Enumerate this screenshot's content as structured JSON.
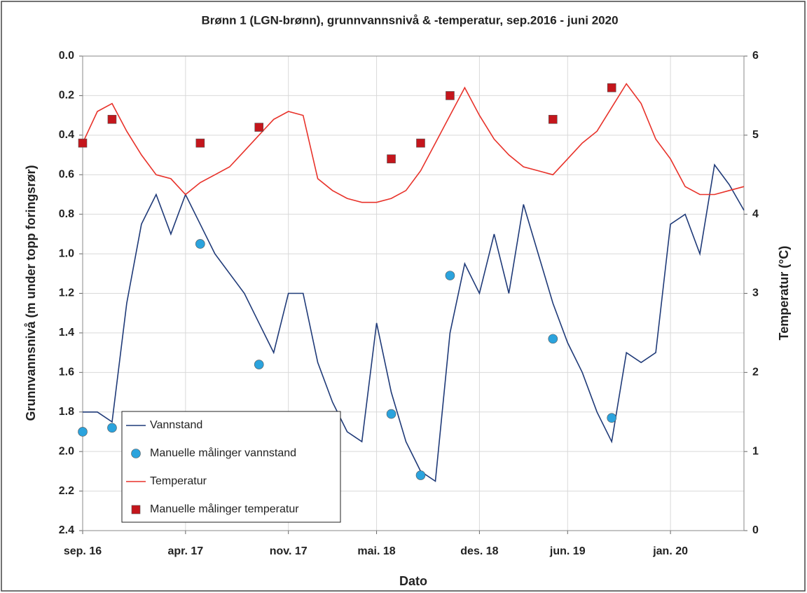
{
  "chart_data": {
    "type": "line",
    "title": "Brønn 1 (LGN-brønn), grunnvannsnivå & -temperatur, sep.2016 - juni 2020",
    "xlabel": "Dato",
    "ylabel": "Grunnvannsnivå (m under topp foringsrør)",
    "y2label": "Temperatur (°C)",
    "x": [
      "2016-09",
      "2016-10",
      "2016-11",
      "2016-12",
      "2017-01",
      "2017-02",
      "2017-03",
      "2017-04",
      "2017-05",
      "2017-06",
      "2017-07",
      "2017-08",
      "2017-09",
      "2017-10",
      "2017-11",
      "2017-12",
      "2018-01",
      "2018-02",
      "2018-03",
      "2018-04",
      "2018-05",
      "2018-06",
      "2018-07",
      "2018-08",
      "2018-09",
      "2018-10",
      "2018-11",
      "2018-12",
      "2019-01",
      "2019-02",
      "2019-03",
      "2019-04",
      "2019-05",
      "2019-06",
      "2019-07",
      "2019-08",
      "2019-09",
      "2019-10",
      "2019-11",
      "2019-12",
      "2020-01",
      "2020-02",
      "2020-03",
      "2020-04",
      "2020-05",
      "2020-06"
    ],
    "xlim": [
      "2016-09",
      "2020-06"
    ],
    "xticks": [
      {
        "value": "2016-09",
        "label": "sep. 16"
      },
      {
        "value": "2017-04",
        "label": "apr. 17"
      },
      {
        "value": "2017-11",
        "label": "nov. 17"
      },
      {
        "value": "2018-05",
        "label": "mai. 18"
      },
      {
        "value": "2018-12",
        "label": "des. 18"
      },
      {
        "value": "2019-06",
        "label": "jun. 19"
      },
      {
        "value": "2020-01",
        "label": "jan. 20"
      }
    ],
    "ylim": [
      0,
      2.4
    ],
    "yinverted": true,
    "yticks": [
      {
        "value": 0,
        "label": "0.0"
      },
      0.2,
      0.4,
      0.6,
      0.8,
      {
        "value": 1,
        "label": "1.0"
      },
      1.2,
      1.4,
      1.6,
      1.8,
      {
        "value": 2,
        "label": "2.0"
      },
      2.2,
      2.4
    ],
    "y2lim": [
      0,
      6
    ],
    "y2ticks": [
      0,
      1,
      2,
      3,
      4,
      5,
      6
    ],
    "grid": true,
    "legend": "lower left",
    "series": [
      {
        "name": "Vannstand",
        "color": "#1f3a78",
        "values": [
          1.8,
          1.8,
          1.85,
          1.25,
          0.85,
          0.7,
          0.9,
          0.7,
          0.85,
          1.0,
          1.1,
          1.2,
          1.35,
          1.5,
          1.2,
          1.2,
          1.55,
          1.75,
          1.9,
          1.95,
          1.35,
          1.7,
          1.95,
          2.1,
          2.15,
          1.4,
          1.05,
          1.2,
          0.9,
          1.2,
          0.75,
          1.0,
          1.25,
          1.45,
          1.6,
          1.8,
          1.95,
          1.5,
          1.55,
          1.5,
          0.85,
          0.8,
          1.0,
          0.55,
          0.65,
          0.78
        ]
      },
      {
        "name": "Manuelle målinger vannstand",
        "color": "#2ba3dd",
        "marker": "circle",
        "x": [
          "2016-09",
          "2016-11",
          "2017-05",
          "2017-09",
          "2018-06",
          "2018-08",
          "2018-10",
          "2019-05",
          "2019-09"
        ],
        "values": [
          1.9,
          1.88,
          0.95,
          1.56,
          1.81,
          2.12,
          1.11,
          1.43,
          1.83
        ]
      },
      {
        "name": "Temperatur",
        "color": "#e8322a",
        "axis": "y2",
        "values": [
          4.9,
          5.3,
          5.4,
          5.05,
          4.75,
          4.5,
          4.45,
          4.25,
          4.4,
          4.5,
          4.6,
          4.8,
          5.0,
          5.2,
          5.3,
          5.25,
          4.45,
          4.3,
          4.2,
          4.15,
          4.15,
          4.2,
          4.3,
          4.55,
          4.9,
          5.25,
          5.6,
          5.25,
          4.95,
          4.75,
          4.6,
          4.55,
          4.5,
          4.7,
          4.9,
          5.05,
          5.35,
          5.65,
          5.4,
          4.95,
          4.7,
          4.35,
          4.25,
          4.25,
          4.3,
          4.35
        ]
      },
      {
        "name": "Manuelle målinger temperatur",
        "color": "#c4161c",
        "axis": "y2",
        "marker": "square",
        "x": [
          "2016-09",
          "2016-11",
          "2017-05",
          "2017-09",
          "2018-06",
          "2018-08",
          "2018-10",
          "2019-05",
          "2019-09"
        ],
        "values": [
          4.9,
          5.2,
          4.9,
          5.1,
          4.7,
          4.9,
          5.5,
          5.2,
          5.6
        ]
      }
    ]
  }
}
